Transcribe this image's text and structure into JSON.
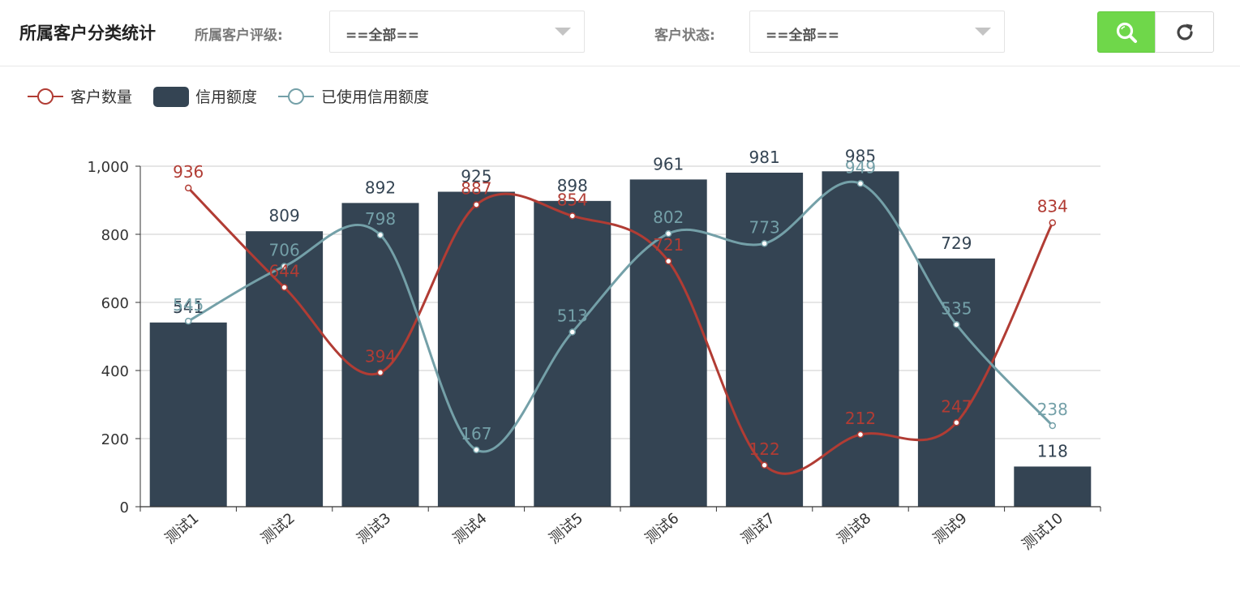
{
  "header": {
    "title": "所属客户分类统计",
    "rating_label": "所属客户评级:",
    "rating_value": "==全部==",
    "status_label": "客户状态:",
    "status_value": "==全部=="
  },
  "icons": {
    "search": "search-icon",
    "refresh": "refresh-icon",
    "dropdown": "chevron-down-icon"
  },
  "colors": {
    "bar": "#344453",
    "customer_line": "#b13c34",
    "used_credit_line": "#74a0a8",
    "search_button": "#6fd74a"
  },
  "chart_data": {
    "type": "bar",
    "categories": [
      "测试1",
      "测试2",
      "测试3",
      "测试4",
      "测试5",
      "测试6",
      "测试7",
      "测试8",
      "测试9",
      "测试10"
    ],
    "ylim": [
      0,
      1000
    ],
    "yticks": [
      0,
      200,
      400,
      600,
      800,
      1000
    ],
    "ytick_labels": [
      "0",
      "200",
      "400",
      "600",
      "800",
      "1,000"
    ],
    "legend_position": "top-left",
    "grid": true,
    "series": [
      {
        "name": "客户数量",
        "type": "line",
        "smooth": true,
        "values": [
          936,
          644,
          394,
          887,
          854,
          721,
          122,
          212,
          247,
          834
        ]
      },
      {
        "name": "信用额度",
        "type": "bar",
        "values": [
          541,
          809,
          892,
          925,
          898,
          961,
          981,
          985,
          729,
          118
        ]
      },
      {
        "name": "已使用信用额度",
        "type": "line",
        "smooth": true,
        "values": [
          545,
          706,
          798,
          167,
          513,
          802,
          773,
          949,
          535,
          238
        ]
      }
    ]
  }
}
